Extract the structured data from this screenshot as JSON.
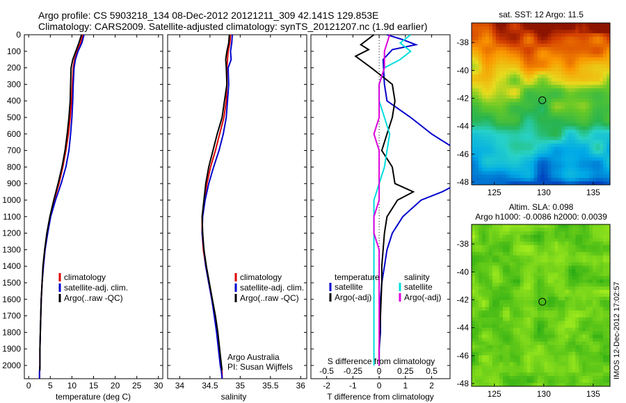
{
  "header": {
    "line1": "Argo profile: CS 5903218_134 08-Dec-2012 20121211_309 42.141S 129.853E",
    "line2": "Climatology: CARS2009. Satellite-adjusted climatology: synTS_20121207.nc (1.9d earlier)"
  },
  "side_stamp": "IMOS 12-Dec-2012 17:02:57",
  "credit": {
    "line1": "Argo Australia",
    "line2": "PI: Susan Wijffels"
  },
  "colors": {
    "climatology": "#dd0000",
    "satellite": "#0000cc",
    "argo": "#000000",
    "satellite_s": "#00dddd",
    "argo_s": "#dd00dd"
  },
  "chart_data": [
    {
      "id": "temperature",
      "type": "line",
      "xlabel": "temperature (deg C)",
      "ylabel": "",
      "xlim": [
        -1,
        31
      ],
      "ylim": [
        2080,
        0
      ],
      "xticks": [
        0,
        5,
        10,
        15,
        20,
        25,
        30
      ],
      "yticks": [
        0,
        100,
        200,
        300,
        400,
        500,
        600,
        700,
        800,
        900,
        1000,
        1100,
        1200,
        1300,
        1400,
        1500,
        1600,
        1700,
        1800,
        1900,
        2000
      ],
      "legend": [
        "climatology",
        "satellite-adj. clim.",
        "Argo(..raw -QC)"
      ],
      "series": [
        {
          "name": "climatology",
          "color": "#dd0000",
          "x": [
            12.5,
            12.0,
            11.2,
            10.6,
            10.3,
            10.1,
            9.9,
            9.6,
            9.2,
            8.6,
            7.9,
            7.0,
            5.9,
            5.0,
            4.3,
            3.8,
            3.4,
            3.1,
            2.9,
            2.8,
            2.7,
            2.6,
            2.6,
            2.5,
            2.5
          ],
          "y": [
            0,
            50,
            100,
            150,
            200,
            300,
            400,
            500,
            600,
            700,
            800,
            900,
            1000,
            1100,
            1200,
            1300,
            1400,
            1500,
            1600,
            1700,
            1800,
            1900,
            2000,
            2040,
            2080
          ]
        },
        {
          "name": "satellite-adj. clim.",
          "color": "#0000cc",
          "x": [
            12.8,
            12.3,
            11.4,
            10.8,
            10.5,
            10.3,
            10.2,
            10.0,
            9.7,
            9.3,
            8.6,
            7.5,
            6.2,
            5.1,
            4.4,
            3.8,
            3.4,
            3.1,
            2.9,
            2.8,
            2.7,
            2.6,
            2.6,
            2.5,
            2.5
          ],
          "y": [
            0,
            50,
            100,
            150,
            200,
            300,
            400,
            500,
            600,
            700,
            800,
            900,
            1000,
            1100,
            1200,
            1300,
            1400,
            1500,
            1600,
            1700,
            1800,
            1900,
            2000,
            2040,
            2080
          ]
        },
        {
          "name": "Argo(..raw -QC)",
          "color": "#000000",
          "x": [
            12.2,
            11.6,
            10.9,
            10.2,
            9.8,
            9.7,
            9.6,
            9.3,
            8.9,
            8.4,
            7.7,
            6.8,
            5.8,
            4.9,
            4.2,
            3.7,
            3.3,
            3.1,
            2.9,
            2.8,
            2.7,
            2.6,
            2.6,
            2.6
          ],
          "y": [
            0,
            50,
            100,
            150,
            200,
            300,
            400,
            500,
            600,
            700,
            800,
            900,
            1000,
            1100,
            1200,
            1300,
            1400,
            1500,
            1600,
            1700,
            1800,
            1900,
            2000,
            2030
          ]
        }
      ]
    },
    {
      "id": "salinity",
      "type": "line",
      "xlabel": "salinity",
      "ylabel": "",
      "xlim": [
        33.8,
        36.1
      ],
      "ylim": [
        2080,
        0
      ],
      "xticks": [
        34,
        34.5,
        35,
        35.5,
        36
      ],
      "legend": [
        "climatology",
        "satellite-adj. clim.",
        "Argo(..raw -QC)"
      ],
      "series": [
        {
          "name": "climatology",
          "color": "#dd0000",
          "x": [
            34.84,
            34.83,
            34.8,
            34.79,
            34.78,
            34.78,
            34.77,
            34.73,
            34.66,
            34.59,
            34.51,
            34.45,
            34.41,
            34.37,
            34.37,
            34.39,
            34.43,
            34.48,
            34.53,
            34.58,
            34.62,
            34.65,
            34.68,
            34.7,
            34.7
          ],
          "y": [
            0,
            50,
            100,
            150,
            200,
            300,
            400,
            500,
            600,
            700,
            800,
            900,
            1000,
            1100,
            1200,
            1300,
            1400,
            1500,
            1600,
            1700,
            1800,
            1900,
            2000,
            2040,
            2080
          ]
        },
        {
          "name": "satellite-adj. clim.",
          "color": "#0000cc",
          "x": [
            34.87,
            34.86,
            34.84,
            34.85,
            34.8,
            34.81,
            34.79,
            34.77,
            34.72,
            34.65,
            34.56,
            34.48,
            34.42,
            34.38,
            34.37,
            34.4,
            34.43,
            34.48,
            34.53,
            34.57,
            34.61,
            34.64,
            34.67,
            34.69,
            34.7
          ],
          "y": [
            0,
            50,
            100,
            150,
            200,
            300,
            400,
            500,
            600,
            700,
            800,
            900,
            1000,
            1100,
            1200,
            1300,
            1400,
            1500,
            1600,
            1700,
            1800,
            1900,
            2000,
            2040,
            2080
          ]
        },
        {
          "name": "Argo(..raw -QC)",
          "color": "#000000",
          "x": [
            34.82,
            34.81,
            34.78,
            34.76,
            34.77,
            34.78,
            34.74,
            34.7,
            34.62,
            34.55,
            34.48,
            34.43,
            34.4,
            34.37,
            34.38,
            34.4,
            34.44,
            34.49,
            34.54,
            34.59,
            34.63,
            34.66,
            34.69,
            34.7
          ],
          "y": [
            0,
            50,
            100,
            150,
            200,
            300,
            400,
            500,
            600,
            700,
            800,
            900,
            1000,
            1100,
            1200,
            1300,
            1400,
            1500,
            1600,
            1700,
            1800,
            1900,
            2000,
            2030
          ]
        }
      ]
    },
    {
      "id": "difference",
      "type": "line",
      "xlabel": "T difference from climatology",
      "xlabel_top": "S difference from climatology",
      "xlim": [
        -2.6,
        2.7
      ],
      "ylim": [
        2080,
        0
      ],
      "xticks": [
        -2,
        -1,
        0,
        1,
        2
      ],
      "xticks_labels": [
        "-2",
        "-1",
        "0",
        "1",
        "2"
      ],
      "sticks": [
        -0.5,
        -0.25,
        0,
        0.25,
        0.5
      ],
      "sticks_labels": [
        "-0.5",
        "-0.25",
        "0",
        "0.25",
        "0.5"
      ],
      "legend_temperature": {
        "title": "temperature",
        "items": [
          "satellite",
          "Argo(-adj)"
        ]
      },
      "legend_salinity": {
        "title": "salinity",
        "items": [
          "satellite",
          "Argo(-adj)"
        ]
      },
      "series": [
        {
          "name": "temperature satellite",
          "color": "#0000cc",
          "x": [
            0.3,
            0.9,
            1.4,
            0.5,
            0.15,
            0.2,
            0.3,
            1.2,
            2.0,
            3.0,
            3.3,
            3.0,
            2.4,
            1.6,
            0.9,
            0.5,
            0.3,
            0.2,
            0.1,
            0.05,
            0.05,
            0.0,
            0.0
          ],
          "y": [
            0,
            30,
            60,
            90,
            150,
            300,
            400,
            500,
            600,
            700,
            800,
            900,
            950,
            1000,
            1100,
            1200,
            1300,
            1400,
            1500,
            1600,
            1800,
            1900,
            2000
          ]
        },
        {
          "name": "temperature Argo(-adj)",
          "color": "#000000",
          "x": [
            -0.2,
            -0.7,
            -0.4,
            -0.9,
            -0.3,
            0.5,
            0.6,
            0.5,
            0.3,
            0.1,
            0.5,
            0.6,
            1.3,
            0.7,
            0.3,
            0.2,
            0.15,
            0.1,
            0.1,
            0.05,
            0.0,
            0.0
          ],
          "y": [
            0,
            60,
            90,
            130,
            200,
            300,
            400,
            500,
            600,
            700,
            800,
            900,
            950,
            1000,
            1100,
            1200,
            1300,
            1400,
            1500,
            1700,
            1900,
            2000
          ]
        },
        {
          "name": "salinity satellite",
          "color": "#00dddd",
          "x": [
            0.3,
            0.2,
            0.3,
            0.2,
            0.05,
            0.0,
            0.0,
            0.05,
            0.1,
            0.05,
            -0.05,
            -0.05,
            -0.05,
            -0.05,
            -0.05,
            -0.05,
            -0.05,
            -0.05,
            -0.05,
            -0.05
          ],
          "y": [
            0,
            50,
            100,
            150,
            200,
            300,
            400,
            500,
            600,
            800,
            1000,
            1100,
            1200,
            1300,
            1400,
            1500,
            1600,
            1700,
            1800,
            2000
          ]
        },
        {
          "name": "salinity Argo(-adj)",
          "color": "#dd00dd",
          "x": [
            0.1,
            0.05,
            0.05,
            0.0,
            0.0,
            0.0,
            -0.05,
            0.0,
            0.0,
            0.0,
            0.0,
            -0.05,
            -0.05,
            0.0,
            0.0,
            0.0,
            0.0,
            0.0,
            0.0
          ],
          "y": [
            0,
            100,
            200,
            300,
            400,
            500,
            600,
            700,
            800,
            900,
            1000,
            1100,
            1200,
            1300,
            1400,
            1500,
            1700,
            1900,
            2000
          ]
        }
      ]
    },
    {
      "id": "sst_map",
      "type": "heatmap",
      "title": "sat. SST: 12 Argo: 11.5",
      "xlim": [
        122.7,
        136.7
      ],
      "ylim": [
        -48.2,
        -36.6
      ],
      "xticks": [
        125,
        130,
        135
      ],
      "yticks": [
        -38,
        -40,
        -42,
        -44,
        -46,
        -48
      ],
      "marker": {
        "lon": 129.853,
        "lat": -42.141
      }
    },
    {
      "id": "sla_map",
      "type": "heatmap",
      "title": "Altim. SLA: 0.098",
      "subtitle": "Argo h1000: -0.0086 h2000: 0.0039",
      "xlim": [
        122.7,
        136.7
      ],
      "ylim": [
        -48.2,
        -36.6
      ],
      "xticks": [
        125,
        130,
        135
      ],
      "yticks": [
        -38,
        -40,
        -42,
        -44,
        -46,
        -48
      ],
      "marker": {
        "lon": 129.853,
        "lat": -42.141
      }
    }
  ]
}
